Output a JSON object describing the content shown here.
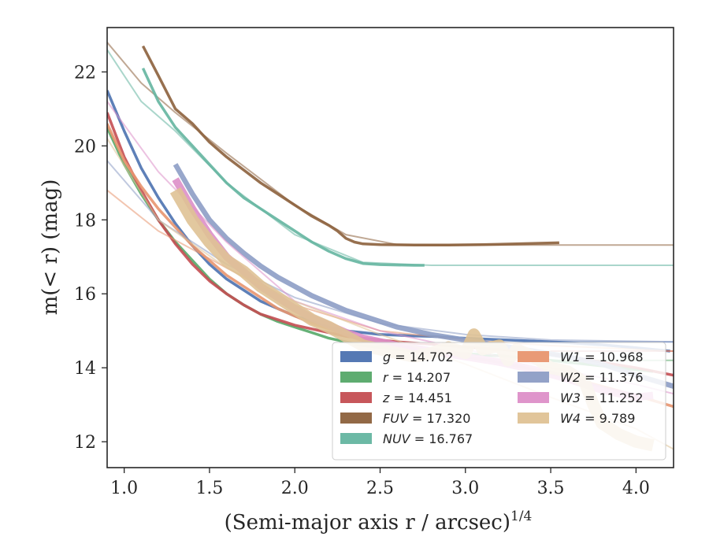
{
  "chart_data": {
    "type": "line",
    "xlabel": "(Semi-major axis r / arcsec)",
    "xlabel_exponent": "1/4",
    "ylabel": "m(< r) (mag)",
    "xlim": [
      0.9,
      4.22
    ],
    "ylim": [
      23.2,
      11.3
    ],
    "y_inverted": true,
    "grid": false,
    "legend_position": "lower-right",
    "xticks": [
      1.0,
      1.5,
      2.0,
      2.5,
      3.0,
      3.5,
      4.0
    ],
    "xtick_labels": [
      "1.0",
      "1.5",
      "2.0",
      "2.5",
      "3.0",
      "3.5",
      "4.0"
    ],
    "yticks": [
      12,
      14,
      16,
      18,
      20,
      22
    ],
    "ytick_labels": [
      "12",
      "14",
      "16",
      "18",
      "20",
      "22"
    ],
    "series": [
      {
        "name": "g",
        "legend_label": "g = 14.702",
        "color": "#4c72b0",
        "width": 1.0,
        "x": [
          0.9,
          1.0,
          1.1,
          1.2,
          1.3,
          1.4,
          1.5,
          1.6,
          1.7,
          1.8,
          1.9,
          2.0,
          2.1,
          2.2,
          2.3,
          2.4,
          2.5,
          2.6,
          2.7,
          2.8,
          2.9,
          3.0,
          3.2,
          3.4,
          3.6,
          3.8,
          4.0,
          4.2
        ],
        "y": [
          21.5,
          20.4,
          19.4,
          18.6,
          17.9,
          17.3,
          16.8,
          16.4,
          16.1,
          15.8,
          15.6,
          15.4,
          15.25,
          15.1,
          15.0,
          14.95,
          14.9,
          14.88,
          14.86,
          14.85,
          14.82,
          14.8,
          14.76,
          14.72,
          14.68,
          14.62,
          14.54,
          14.45
        ],
        "extrap_x": [
          3.5,
          3.7,
          3.9,
          4.22
        ],
        "extrap_y": [
          14.7,
          14.7,
          14.7,
          14.7
        ]
      },
      {
        "name": "r",
        "legend_label": "r = 14.207",
        "color": "#55a868",
        "width": 1.0,
        "x": [
          0.9,
          1.0,
          1.1,
          1.2,
          1.3,
          1.4,
          1.5,
          1.6,
          1.7,
          1.8,
          1.9,
          2.0,
          2.1,
          2.2,
          2.3,
          2.4,
          2.5,
          2.6,
          2.7,
          2.8,
          2.9,
          3.0,
          3.2,
          3.4,
          3.6,
          3.8,
          4.0,
          4.1
        ],
        "y": [
          20.5,
          19.5,
          18.7,
          18.0,
          17.4,
          16.9,
          16.4,
          16.0,
          15.7,
          15.45,
          15.25,
          15.1,
          14.95,
          14.8,
          14.7,
          14.6,
          14.55,
          14.5,
          14.45,
          14.42,
          14.4,
          14.38,
          14.32,
          14.25,
          14.15,
          14.05,
          13.95,
          13.9
        ],
        "extrap_x": [
          3.5,
          3.7,
          3.9,
          4.22
        ],
        "extrap_y": [
          14.2,
          14.2,
          14.2,
          14.2
        ]
      },
      {
        "name": "z",
        "legend_label": "z = 14.451",
        "color": "#c44e52",
        "width": 1.0,
        "x": [
          0.9,
          1.0,
          1.1,
          1.2,
          1.3,
          1.4,
          1.5,
          1.6,
          1.7,
          1.8,
          1.9,
          2.0,
          2.1,
          2.2,
          2.3,
          2.4,
          2.5,
          2.6,
          2.7,
          2.8,
          2.9,
          3.0,
          3.2,
          3.4,
          3.6,
          3.8,
          4.0,
          4.22
        ],
        "y": [
          20.9,
          19.7,
          18.8,
          18.0,
          17.35,
          16.8,
          16.35,
          16.0,
          15.7,
          15.45,
          15.3,
          15.15,
          15.05,
          14.95,
          14.85,
          14.8,
          14.75,
          14.7,
          14.67,
          14.64,
          14.6,
          14.56,
          14.5,
          14.42,
          14.3,
          14.15,
          14.0,
          13.8
        ],
        "extrap_x": [
          3.5,
          3.7,
          3.9,
          4.22
        ],
        "extrap_y": [
          14.45,
          14.45,
          14.45,
          14.45
        ]
      },
      {
        "name": "FUV",
        "legend_label": "FUV = 17.320",
        "color": "#8c613c",
        "width": 1.0,
        "x": [
          1.11,
          1.2,
          1.3,
          1.4,
          1.5,
          1.6,
          1.7,
          1.8,
          1.9,
          2.0,
          2.1,
          2.2,
          2.25,
          2.3,
          2.35,
          2.4,
          2.5,
          2.7,
          2.9,
          3.1,
          3.3,
          3.55
        ],
        "y": [
          22.7,
          21.9,
          21.0,
          20.6,
          20.1,
          19.7,
          19.35,
          19.0,
          18.7,
          18.4,
          18.1,
          17.85,
          17.7,
          17.5,
          17.4,
          17.35,
          17.33,
          17.32,
          17.32,
          17.33,
          17.35,
          17.38
        ],
        "extrap_x": [
          0.9,
          1.1,
          1.3,
          1.6,
          2.0,
          2.3,
          2.6,
          3.0,
          3.5,
          4.22
        ],
        "extrap_y": [
          22.8,
          21.7,
          20.9,
          19.8,
          18.4,
          17.6,
          17.33,
          17.32,
          17.32,
          17.32
        ]
      },
      {
        "name": "NUV",
        "legend_label": "NUV = 16.767",
        "color": "#64b5a0",
        "width": 1.0,
        "x": [
          1.11,
          1.2,
          1.3,
          1.4,
          1.5,
          1.6,
          1.7,
          1.8,
          1.9,
          2.0,
          2.1,
          2.2,
          2.3,
          2.4,
          2.5,
          2.6,
          2.7,
          2.76
        ],
        "y": [
          22.1,
          21.2,
          20.5,
          20.0,
          19.5,
          19.0,
          18.6,
          18.3,
          18.0,
          17.7,
          17.4,
          17.15,
          16.95,
          16.82,
          16.79,
          16.78,
          16.77,
          16.77
        ],
        "extrap_x": [
          0.9,
          1.1,
          1.3,
          1.6,
          2.0,
          2.4,
          2.8,
          3.5,
          4.22
        ],
        "extrap_y": [
          22.6,
          21.2,
          20.4,
          19.0,
          17.6,
          16.85,
          16.77,
          16.77,
          16.77
        ]
      },
      {
        "name": "W1",
        "legend_label": "W1 = 10.968",
        "color": "#e8956f",
        "width": 1.0,
        "x": [
          0.9,
          1.0,
          1.1,
          1.2,
          1.3,
          1.4,
          1.5,
          1.6,
          1.7,
          1.8,
          1.9,
          2.0,
          2.1,
          2.2,
          2.3,
          2.4,
          2.5,
          2.6,
          2.8,
          3.0,
          3.2,
          3.4,
          3.6,
          3.8,
          4.0,
          4.22
        ],
        "y": [
          20.6,
          19.6,
          18.9,
          18.3,
          17.8,
          17.3,
          16.9,
          16.5,
          16.2,
          15.9,
          15.6,
          15.4,
          15.2,
          15.05,
          14.9,
          14.8,
          14.7,
          14.6,
          14.45,
          14.3,
          14.15,
          13.95,
          13.75,
          13.5,
          13.25,
          12.95
        ],
        "extrap_x": [
          0.9,
          1.2,
          1.6,
          2.0,
          2.5,
          3.0,
          3.5,
          4.0,
          4.22
        ],
        "extrap_y": [
          18.8,
          17.7,
          16.7,
          15.7,
          15.0,
          14.75,
          14.6,
          14.5,
          14.45
        ]
      },
      {
        "name": "W2",
        "legend_label": "W2 = 11.376",
        "color": "#8d9dc5",
        "width": 2.5,
        "x": [
          1.3,
          1.4,
          1.5,
          1.6,
          1.7,
          1.8,
          1.9,
          2.0,
          2.1,
          2.2,
          2.3,
          2.4,
          2.5,
          2.6,
          2.8,
          3.0,
          3.2,
          3.4,
          3.6,
          3.8,
          4.0,
          4.22
        ],
        "y": [
          19.5,
          18.7,
          18.0,
          17.5,
          17.1,
          16.75,
          16.45,
          16.2,
          15.95,
          15.75,
          15.55,
          15.4,
          15.25,
          15.1,
          14.9,
          14.75,
          14.6,
          14.45,
          14.3,
          14.1,
          13.8,
          13.5
        ],
        "extrap_x": [
          0.9,
          1.2,
          1.6,
          2.0,
          2.5,
          3.0,
          3.5,
          4.22
        ],
        "extrap_y": [
          19.6,
          18.0,
          16.8,
          15.9,
          15.2,
          14.9,
          14.75,
          14.7
        ]
      },
      {
        "name": "W3",
        "legend_label": "W3 = 11.252",
        "color": "#dd8fc8",
        "width": 4.0,
        "x": [
          1.3,
          1.4,
          1.5,
          1.6,
          1.7,
          1.8,
          1.9,
          2.0,
          2.1,
          2.2,
          2.3,
          2.4,
          2.5,
          2.6,
          2.8,
          3.0,
          3.2,
          3.4,
          3.6,
          3.8,
          4.0,
          4.1
        ],
        "y": [
          19.1,
          18.3,
          17.6,
          17.0,
          16.6,
          16.2,
          15.9,
          15.6,
          15.35,
          15.15,
          14.95,
          14.8,
          14.7,
          14.6,
          14.45,
          14.3,
          14.15,
          13.95,
          13.7,
          13.4,
          13.2,
          13.25
        ],
        "extrap_x": [
          0.9,
          1.2,
          1.6,
          2.0,
          2.5,
          3.0,
          3.5,
          4.0,
          4.22
        ],
        "extrap_y": [
          21.2,
          19.3,
          17.4,
          15.8,
          15.0,
          14.5,
          14.0,
          13.55,
          13.3
        ]
      },
      {
        "name": "W4",
        "legend_label": "W4 = 9.789",
        "color": "#dfc295",
        "width": 7.0,
        "x": [
          1.3,
          1.4,
          1.5,
          1.6,
          1.7,
          1.8,
          1.9,
          2.0,
          2.1,
          2.2,
          2.3,
          2.4,
          2.5,
          2.6,
          2.7,
          2.8,
          2.9,
          3.0,
          3.05,
          3.1,
          3.2,
          3.25,
          3.3,
          3.4,
          3.5,
          3.6,
          3.7,
          3.75,
          3.8,
          3.9,
          4.0,
          4.1
        ],
        "y": [
          18.8,
          18.0,
          17.4,
          16.9,
          16.6,
          16.2,
          15.9,
          15.6,
          15.3,
          15.1,
          14.85,
          14.6,
          14.5,
          14.4,
          14.3,
          14.4,
          14.55,
          14.4,
          14.9,
          14.5,
          14.6,
          14.2,
          14.5,
          14.3,
          14.0,
          13.9,
          13.6,
          13.0,
          12.5,
          12.2,
          12.0,
          11.9
        ],
        "extrap_x": [
          0.9,
          1.2,
          1.6,
          2.0,
          2.5,
          3.0,
          3.5,
          4.0,
          4.22
        ],
        "extrap_y": [
          20.2,
          18.0,
          16.7,
          15.8,
          14.9,
          14.1,
          13.2,
          12.35,
          11.8
        ]
      }
    ]
  }
}
